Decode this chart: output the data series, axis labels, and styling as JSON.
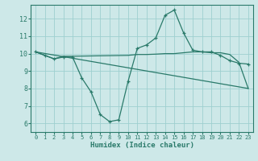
{
  "xlabel": "Humidex (Indice chaleur)",
  "bg_color": "#cde8e8",
  "grid_color": "#9ecfcf",
  "line_color": "#2a7a6a",
  "spine_color": "#2a7a6a",
  "xlim": [
    -0.5,
    23.5
  ],
  "ylim": [
    5.5,
    12.8
  ],
  "yticks": [
    6,
    7,
    8,
    9,
    10,
    11,
    12
  ],
  "xticks": [
    0,
    1,
    2,
    3,
    4,
    5,
    6,
    7,
    8,
    9,
    10,
    11,
    12,
    13,
    14,
    15,
    16,
    17,
    18,
    19,
    20,
    21,
    22,
    23
  ],
  "series": [
    {
      "x": [
        0,
        1,
        2,
        3,
        4,
        5,
        6,
        7,
        8,
        9,
        10,
        11,
        12,
        13,
        14,
        15,
        16,
        17,
        18,
        19,
        20,
        21,
        22,
        23
      ],
      "y": [
        10.1,
        9.9,
        9.7,
        9.8,
        9.8,
        8.6,
        7.8,
        6.5,
        6.1,
        6.2,
        8.4,
        10.3,
        10.5,
        10.9,
        12.2,
        12.5,
        11.2,
        10.2,
        10.1,
        10.1,
        9.9,
        9.6,
        9.45,
        9.4
      ],
      "has_markers": true
    },
    {
      "x": [
        0,
        1,
        2,
        3,
        4,
        10,
        11,
        12,
        13,
        14,
        15,
        16,
        17,
        18,
        19,
        20,
        21,
        22,
        23
      ],
      "y": [
        10.1,
        9.9,
        9.7,
        9.85,
        9.85,
        9.9,
        9.95,
        9.95,
        9.97,
        10.0,
        10.0,
        10.05,
        10.1,
        10.1,
        10.05,
        10.05,
        9.95,
        9.5,
        8.0
      ],
      "has_markers": false
    },
    {
      "x": [
        0,
        23
      ],
      "y": [
        10.1,
        8.0
      ],
      "has_markers": false
    }
  ]
}
